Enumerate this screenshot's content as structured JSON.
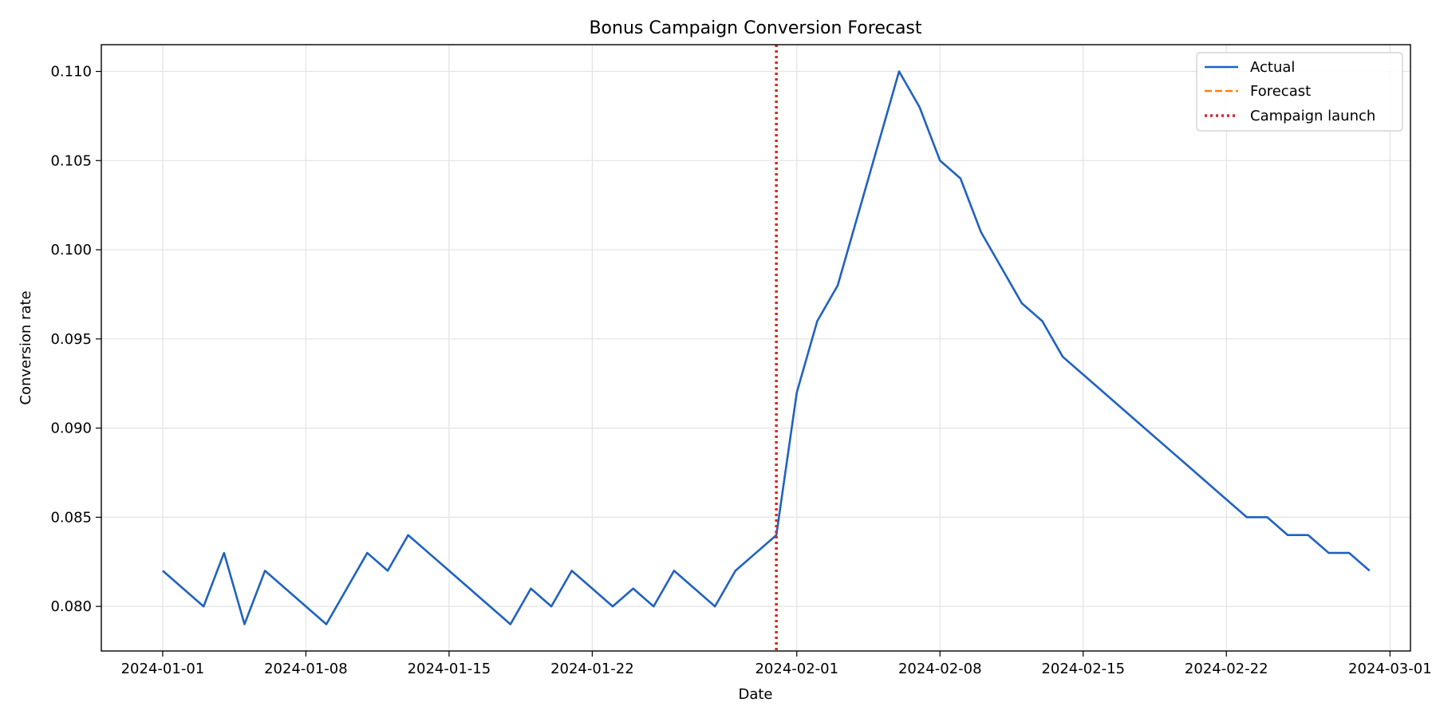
{
  "chart_data": {
    "type": "line",
    "title": "Bonus Campaign Conversion Forecast",
    "xlabel": "Date",
    "ylabel": "Conversion rate",
    "x_axis_type": "date",
    "xlim": [
      "2023-12-29",
      "2024-03-02"
    ],
    "ylim": [
      0.0775,
      0.1115
    ],
    "grid": true,
    "legend_position": "top-right",
    "x_ticks": [
      "2024-01-01",
      "2024-01-08",
      "2024-01-15",
      "2024-01-22",
      "2024-02-01",
      "2024-02-08",
      "2024-02-15",
      "2024-02-22",
      "2024-03-01"
    ],
    "y_ticks": [
      "0.080",
      "0.085",
      "0.090",
      "0.095",
      "0.100",
      "0.105",
      "0.110"
    ],
    "series": [
      {
        "name": "Actual",
        "color": "#1f62c1",
        "style": "solid",
        "x": [
          "2024-01-01",
          "2024-01-02",
          "2024-01-03",
          "2024-01-04",
          "2024-01-05",
          "2024-01-06",
          "2024-01-07",
          "2024-01-08",
          "2024-01-09",
          "2024-01-10",
          "2024-01-11",
          "2024-01-12",
          "2024-01-13",
          "2024-01-14",
          "2024-01-15",
          "2024-01-16",
          "2024-01-17",
          "2024-01-18",
          "2024-01-19",
          "2024-01-20",
          "2024-01-21",
          "2024-01-22",
          "2024-01-23",
          "2024-01-24",
          "2024-01-25",
          "2024-01-26",
          "2024-01-27",
          "2024-01-28",
          "2024-01-29",
          "2024-01-30",
          "2024-01-31",
          "2024-02-01",
          "2024-02-02",
          "2024-02-03",
          "2024-02-04",
          "2024-02-05",
          "2024-02-06",
          "2024-02-07",
          "2024-02-08",
          "2024-02-09",
          "2024-02-10",
          "2024-02-11",
          "2024-02-12",
          "2024-02-13",
          "2024-02-14",
          "2024-02-15",
          "2024-02-16",
          "2024-02-17",
          "2024-02-18",
          "2024-02-19",
          "2024-02-20",
          "2024-02-21",
          "2024-02-22",
          "2024-02-23",
          "2024-02-24",
          "2024-02-25",
          "2024-02-26",
          "2024-02-27",
          "2024-02-28",
          "2024-02-29"
        ],
        "values": [
          0.082,
          0.081,
          0.08,
          0.083,
          0.079,
          0.082,
          0.081,
          0.08,
          0.079,
          0.081,
          0.083,
          0.082,
          0.084,
          0.083,
          0.082,
          0.081,
          0.08,
          0.079,
          0.081,
          0.08,
          0.082,
          0.081,
          0.08,
          0.081,
          0.08,
          0.082,
          0.081,
          0.08,
          0.082,
          0.083,
          0.084,
          0.092,
          0.096,
          0.098,
          0.102,
          0.106,
          0.11,
          0.108,
          0.105,
          0.104,
          0.101,
          0.099,
          0.097,
          0.096,
          0.094,
          0.093,
          0.092,
          0.091,
          0.09,
          0.089,
          0.088,
          0.087,
          0.086,
          0.085,
          0.085,
          0.084,
          0.084,
          0.083,
          0.083,
          0.082
        ]
      },
      {
        "name": "Forecast",
        "color": "#ff7f0e",
        "style": "dashed",
        "x": [],
        "values": []
      }
    ],
    "markers": [
      {
        "name": "Campaign launch",
        "x": "2024-01-31",
        "color": "#d62728",
        "style": "dotted"
      }
    ]
  }
}
